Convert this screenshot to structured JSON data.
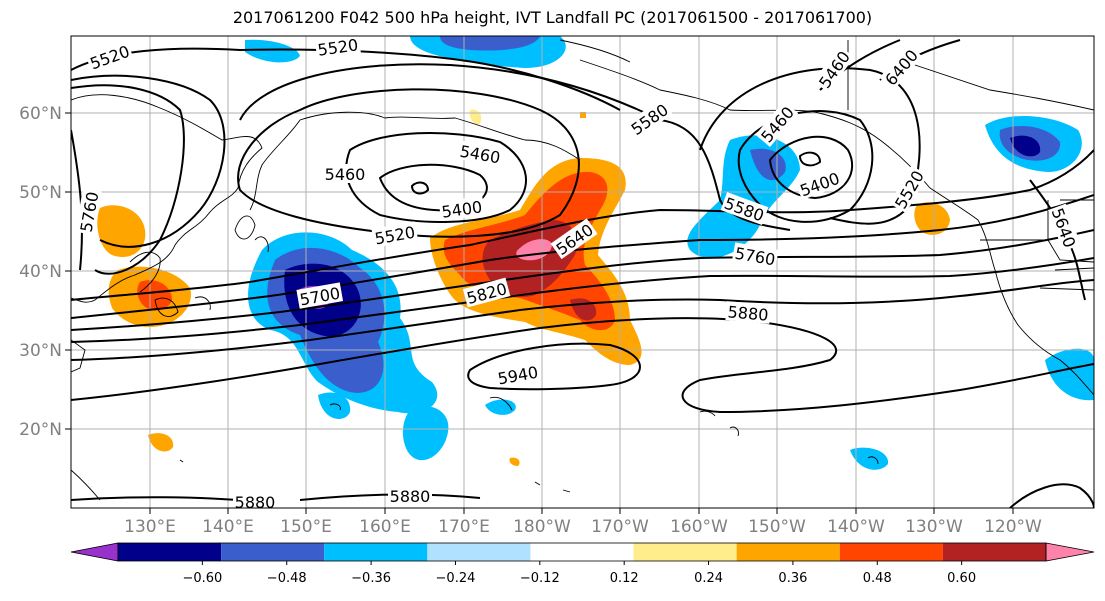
{
  "title": "2017061200 F042 500 hPa height, IVT Landfall PC (2017061500 - 2017061700)",
  "longitude_labels": [
    "130°E",
    "140°E",
    "150°E",
    "160°E",
    "170°E",
    "180°W",
    "170°W",
    "160°W",
    "150°W",
    "140°W",
    "130°W",
    "120°W"
  ],
  "latitude_labels": [
    "60°N",
    "50°N",
    "40°N",
    "30°N",
    "20°N"
  ],
  "contour_labels": [
    "5520",
    "5520",
    "5580",
    "5460",
    "5460",
    "5400",
    "5460",
    "6400",
    "5460",
    "5400",
    "5520",
    "5520",
    "5760",
    "5640",
    "5580",
    "5760",
    "5700",
    "5820",
    "5880",
    "5940",
    "5640",
    "5880",
    "5880"
  ],
  "colorbar": {
    "ticks": [
      "−0.60",
      "−0.48",
      "−0.36",
      "−0.24",
      "−0.12",
      "0.12",
      "0.24",
      "0.36",
      "0.48",
      "0.60"
    ],
    "colors": [
      "#9932cc",
      "#00008b",
      "#3a5fcd",
      "#00bfff",
      "#b0e2ff",
      "#ffffff",
      "#ffec8b",
      "#ffa500",
      "#ff4500",
      "#b22222",
      "#ff82ab"
    ]
  }
}
